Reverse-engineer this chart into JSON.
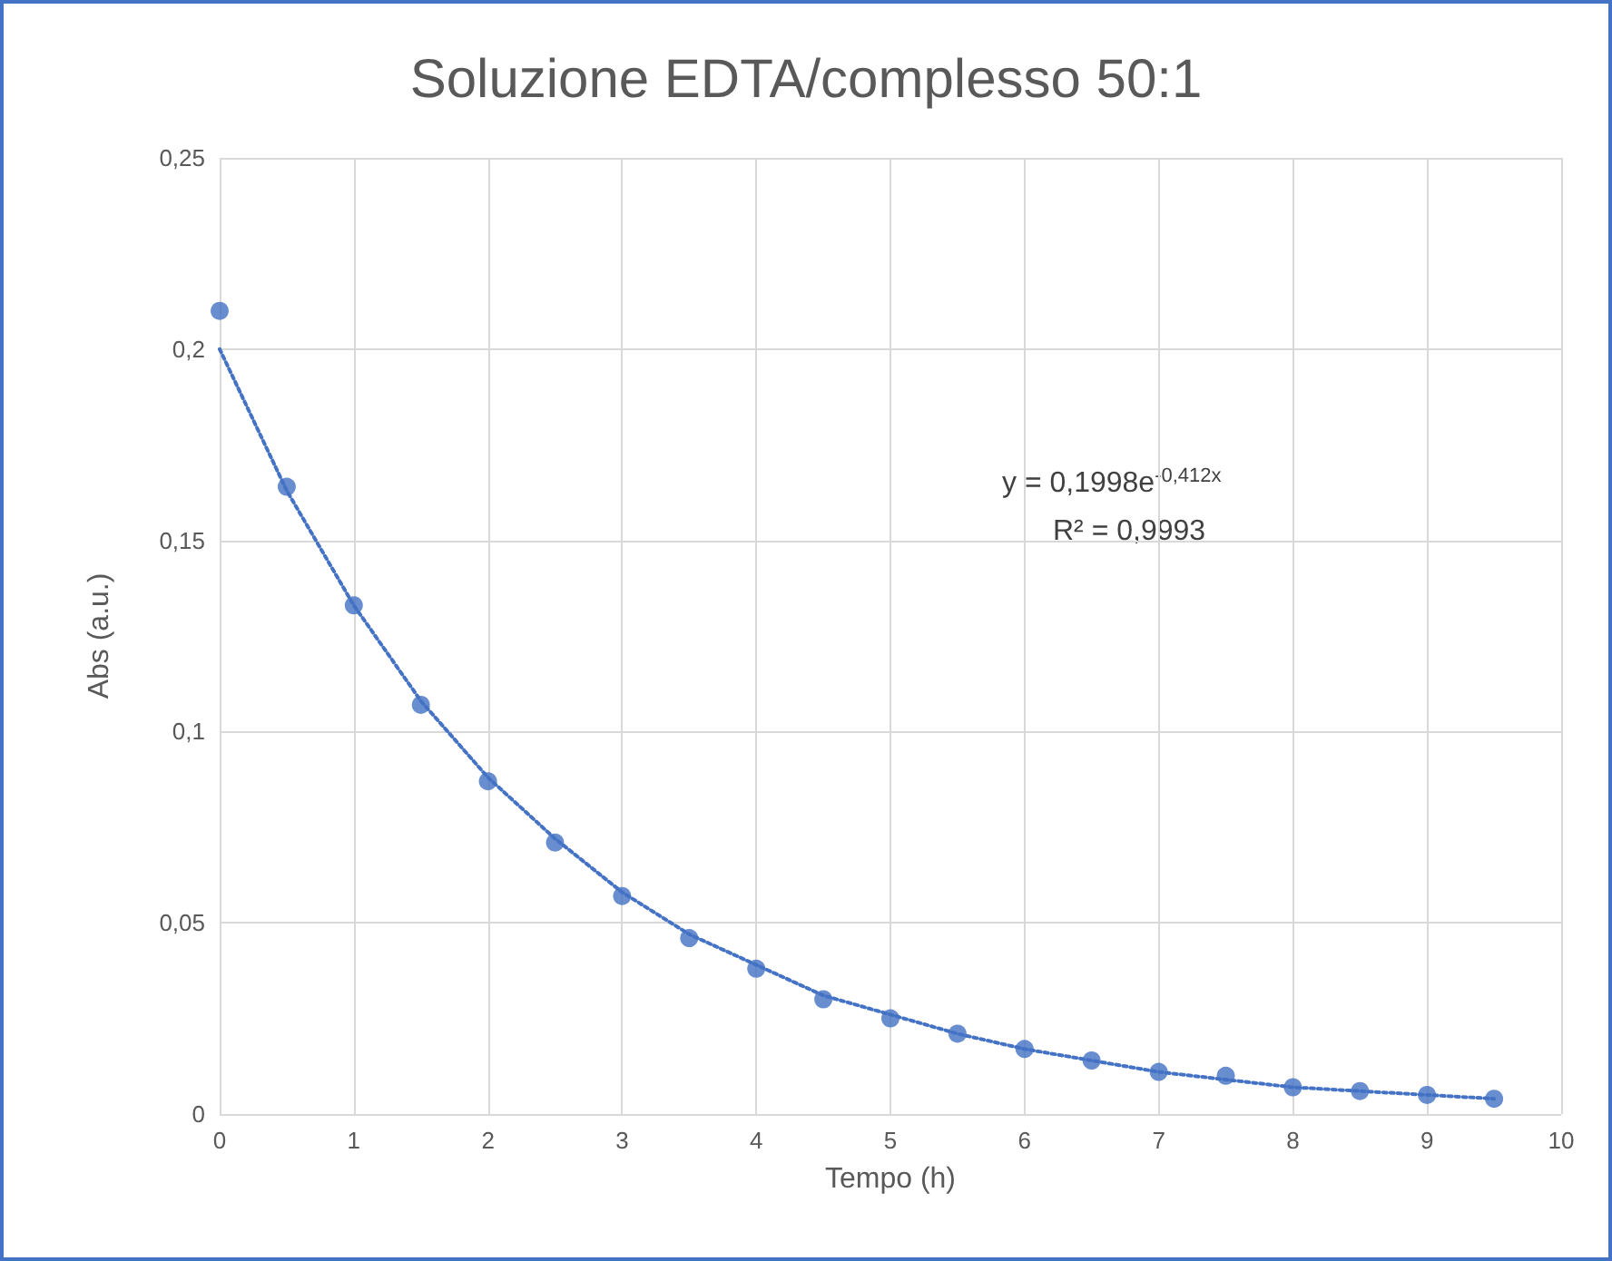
{
  "chart_data": {
    "type": "scatter",
    "title": "Soluzione EDTA/complesso 50:1",
    "xlabel": "Tempo (h)",
    "ylabel": "Abs (a.u.)",
    "xlim": [
      0,
      10
    ],
    "xticks": [
      0,
      1,
      2,
      3,
      4,
      5,
      6,
      7,
      8,
      9,
      10
    ],
    "ylim": [
      0,
      0.25
    ],
    "yticks": [
      0,
      {
        "value": 0.05,
        "label": "0,05"
      },
      {
        "value": 0.1,
        "label": "0,1"
      },
      {
        "value": 0.15,
        "label": "0,15"
      },
      {
        "value": 0.2,
        "label": "0,2"
      },
      {
        "value": 0.25,
        "label": "0,25"
      }
    ],
    "grid": true,
    "marker": "circle",
    "series": [
      {
        "color": "#4472c4",
        "x": [
          0,
          0.5,
          1,
          1.5,
          2,
          2.5,
          3,
          3.5,
          4,
          4.5,
          5,
          5.5,
          6,
          6.5,
          7,
          7.5,
          8,
          8.5,
          9,
          9.5
        ],
        "values": [
          0.21,
          0.164,
          0.133,
          0.107,
          0.087,
          0.071,
          0.057,
          0.046,
          0.038,
          0.03,
          0.025,
          0.021,
          0.017,
          0.014,
          0.011,
          0.01,
          0.007,
          0.006,
          0.005,
          0.004
        ]
      },
      {
        "type": "line",
        "line_style": "dotted",
        "marker": "none",
        "color": "#4472c4",
        "x": [
          0,
          0.5,
          1,
          1.5,
          2,
          2.5,
          3,
          3.5,
          4,
          4.5,
          5,
          5.5,
          6,
          6.5,
          7,
          7.5,
          8,
          8.5,
          9,
          9.5
        ],
        "values": [
          0.2,
          0.163,
          0.133,
          0.108,
          0.088,
          0.072,
          0.058,
          0.047,
          0.039,
          0.031,
          0.026,
          0.021,
          0.017,
          0.014,
          0.011,
          0.009,
          0.007,
          0.006,
          0.005,
          0.004
        ]
      }
    ],
    "annotations": [
      "y = 0,1998e$^{-0,412x}$",
      "R² = 0,9993"
    ]
  }
}
